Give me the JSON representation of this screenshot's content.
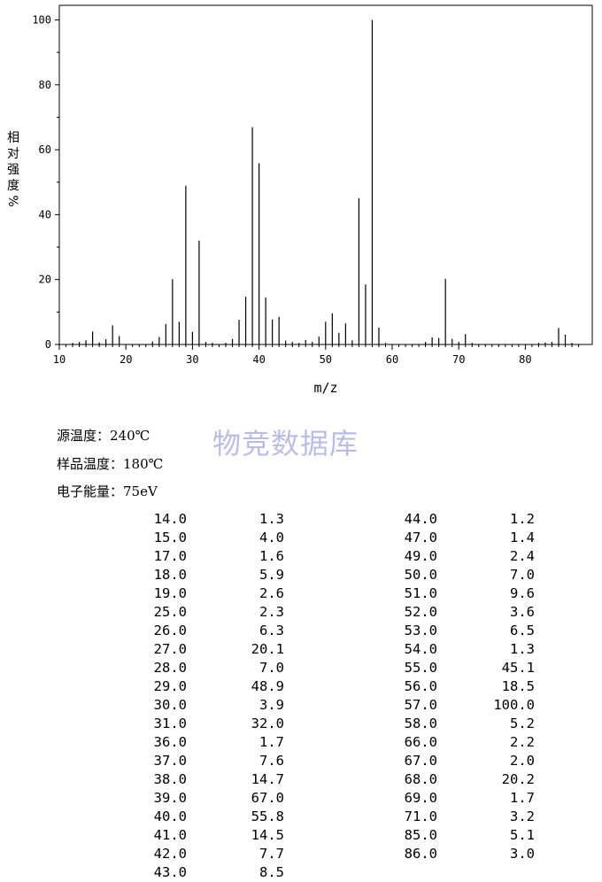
{
  "chart_data": {
    "type": "bar",
    "xlabel": "m/z",
    "ylabel": "相对强度%",
    "xlim": [
      10,
      88
    ],
    "ylim": [
      0,
      100
    ],
    "x_ticks": [
      10,
      20,
      30,
      40,
      50,
      60,
      70,
      80
    ],
    "y_ticks": [
      0,
      20,
      40,
      60,
      80,
      100
    ],
    "minor_x_step": 1,
    "peaks": [
      {
        "x": 12,
        "y": 0.5
      },
      {
        "x": 13,
        "y": 0.8
      },
      {
        "x": 14,
        "y": 1.3
      },
      {
        "x": 15,
        "y": 4.0
      },
      {
        "x": 16,
        "y": 0.6
      },
      {
        "x": 17,
        "y": 1.6
      },
      {
        "x": 18,
        "y": 5.9
      },
      {
        "x": 19,
        "y": 2.6
      },
      {
        "x": 24,
        "y": 0.9
      },
      {
        "x": 25,
        "y": 2.3
      },
      {
        "x": 26,
        "y": 6.3
      },
      {
        "x": 27,
        "y": 20.1
      },
      {
        "x": 28,
        "y": 7.0
      },
      {
        "x": 29,
        "y": 48.9
      },
      {
        "x": 30,
        "y": 3.9
      },
      {
        "x": 31,
        "y": 32.0
      },
      {
        "x": 32,
        "y": 0.8
      },
      {
        "x": 33,
        "y": 0.5
      },
      {
        "x": 35,
        "y": 0.5
      },
      {
        "x": 36,
        "y": 1.7
      },
      {
        "x": 37,
        "y": 7.6
      },
      {
        "x": 38,
        "y": 14.7
      },
      {
        "x": 39,
        "y": 67.0
      },
      {
        "x": 40,
        "y": 55.8
      },
      {
        "x": 41,
        "y": 14.5
      },
      {
        "x": 42,
        "y": 7.7
      },
      {
        "x": 43,
        "y": 8.5
      },
      {
        "x": 44,
        "y": 1.2
      },
      {
        "x": 45,
        "y": 0.8
      },
      {
        "x": 46,
        "y": 0.5
      },
      {
        "x": 47,
        "y": 1.4
      },
      {
        "x": 48,
        "y": 0.8
      },
      {
        "x": 49,
        "y": 2.4
      },
      {
        "x": 50,
        "y": 7.0
      },
      {
        "x": 51,
        "y": 9.6
      },
      {
        "x": 52,
        "y": 3.6
      },
      {
        "x": 53,
        "y": 6.5
      },
      {
        "x": 54,
        "y": 1.3
      },
      {
        "x": 55,
        "y": 45.1
      },
      {
        "x": 56,
        "y": 18.5
      },
      {
        "x": 57,
        "y": 100.0
      },
      {
        "x": 58,
        "y": 5.2
      },
      {
        "x": 59,
        "y": 0.5
      },
      {
        "x": 65,
        "y": 0.8
      },
      {
        "x": 66,
        "y": 2.2
      },
      {
        "x": 67,
        "y": 2.0
      },
      {
        "x": 68,
        "y": 20.2
      },
      {
        "x": 69,
        "y": 1.7
      },
      {
        "x": 70,
        "y": 0.8
      },
      {
        "x": 71,
        "y": 3.2
      },
      {
        "x": 72,
        "y": 0.5
      },
      {
        "x": 82,
        "y": 0.5
      },
      {
        "x": 83,
        "y": 0.6
      },
      {
        "x": 84,
        "y": 0.8
      },
      {
        "x": 85,
        "y": 5.1
      },
      {
        "x": 86,
        "y": 3.0
      },
      {
        "x": 87,
        "y": 0.5
      }
    ]
  },
  "conditions": {
    "source_temp": "源温度：240℃",
    "sample_temp": "样品温度：180℃",
    "electron_energy": "电子能量：75eV"
  },
  "watermark": "物竞数据库",
  "peak_table": {
    "left": [
      [
        "14.0",
        "1.3"
      ],
      [
        "15.0",
        "4.0"
      ],
      [
        "17.0",
        "1.6"
      ],
      [
        "18.0",
        "5.9"
      ],
      [
        "19.0",
        "2.6"
      ],
      [
        "25.0",
        "2.3"
      ],
      [
        "26.0",
        "6.3"
      ],
      [
        "27.0",
        "20.1"
      ],
      [
        "28.0",
        "7.0"
      ],
      [
        "29.0",
        "48.9"
      ],
      [
        "30.0",
        "3.9"
      ],
      [
        "31.0",
        "32.0"
      ],
      [
        "36.0",
        "1.7"
      ],
      [
        "37.0",
        "7.6"
      ],
      [
        "38.0",
        "14.7"
      ],
      [
        "39.0",
        "67.0"
      ],
      [
        "40.0",
        "55.8"
      ],
      [
        "41.0",
        "14.5"
      ],
      [
        "42.0",
        "7.7"
      ],
      [
        "43.0",
        "8.5"
      ]
    ],
    "right": [
      [
        "44.0",
        "1.2"
      ],
      [
        "47.0",
        "1.4"
      ],
      [
        "49.0",
        "2.4"
      ],
      [
        "50.0",
        "7.0"
      ],
      [
        "51.0",
        "9.6"
      ],
      [
        "52.0",
        "3.6"
      ],
      [
        "53.0",
        "6.5"
      ],
      [
        "54.0",
        "1.3"
      ],
      [
        "55.0",
        "45.1"
      ],
      [
        "56.0",
        "18.5"
      ],
      [
        "57.0",
        "100.0"
      ],
      [
        "58.0",
        "5.2"
      ],
      [
        "66.0",
        "2.2"
      ],
      [
        "67.0",
        "2.0"
      ],
      [
        "68.0",
        "20.2"
      ],
      [
        "69.0",
        "1.7"
      ],
      [
        "71.0",
        "3.2"
      ],
      [
        "85.0",
        "5.1"
      ],
      [
        "86.0",
        "3.0"
      ]
    ]
  }
}
